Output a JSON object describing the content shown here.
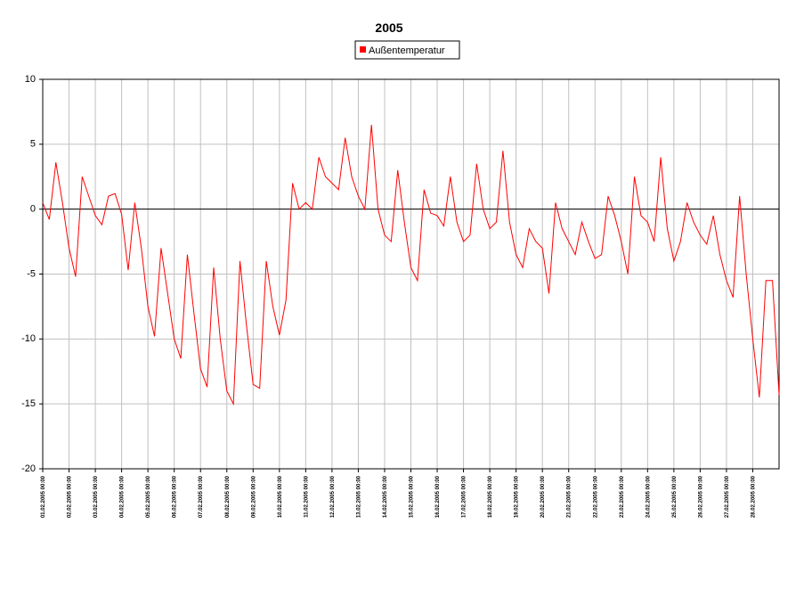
{
  "chart_data": {
    "type": "line",
    "title": "2005",
    "x": [
      "01.02.2005 00:00",
      "01.02.2005 06:00",
      "01.02.2005 12:00",
      "01.02.2005 18:00",
      "02.02.2005 00:00",
      "02.02.2005 06:00",
      "02.02.2005 12:00",
      "02.02.2005 18:00",
      "03.02.2005 00:00",
      "03.02.2005 06:00",
      "03.02.2005 12:00",
      "03.02.2005 18:00",
      "04.02.2005 00:00",
      "04.02.2005 06:00",
      "04.02.2005 12:00",
      "04.02.2005 18:00",
      "05.02.2005 00:00",
      "05.02.2005 06:00",
      "05.02.2005 12:00",
      "05.02.2005 18:00",
      "06.02.2005 00:00",
      "06.02.2005 06:00",
      "06.02.2005 12:00",
      "06.02.2005 18:00",
      "07.02.2005 00:00",
      "07.02.2005 06:00",
      "07.02.2005 12:00",
      "07.02.2005 18:00",
      "08.02.2005 00:00",
      "08.02.2005 06:00",
      "08.02.2005 12:00",
      "08.02.2005 18:00",
      "09.02.2005 00:00",
      "09.02.2005 06:00",
      "09.02.2005 12:00",
      "09.02.2005 18:00",
      "10.02.2005 00:00",
      "10.02.2005 06:00",
      "10.02.2005 12:00",
      "10.02.2005 18:00",
      "11.02.2005 00:00",
      "11.02.2005 06:00",
      "11.02.2005 12:00",
      "11.02.2005 18:00",
      "12.02.2005 00:00",
      "12.02.2005 06:00",
      "12.02.2005 12:00",
      "12.02.2005 18:00",
      "13.02.2005 00:00",
      "13.02.2005 06:00",
      "13.02.2005 12:00",
      "13.02.2005 18:00",
      "14.02.2005 00:00",
      "14.02.2005 06:00",
      "14.02.2005 12:00",
      "14.02.2005 18:00",
      "15.02.2005 00:00",
      "15.02.2005 06:00",
      "15.02.2005 12:00",
      "15.02.2005 18:00",
      "16.02.2005 00:00",
      "16.02.2005 06:00",
      "16.02.2005 12:00",
      "16.02.2005 18:00",
      "17.02.2005 00:00",
      "17.02.2005 06:00",
      "17.02.2005 12:00",
      "17.02.2005 18:00",
      "18.02.2005 00:00",
      "18.02.2005 06:00",
      "18.02.2005 12:00",
      "18.02.2005 18:00",
      "19.02.2005 00:00",
      "19.02.2005 06:00",
      "19.02.2005 12:00",
      "19.02.2005 18:00",
      "20.02.2005 00:00",
      "20.02.2005 06:00",
      "20.02.2005 12:00",
      "20.02.2005 18:00",
      "21.02.2005 00:00",
      "21.02.2005 06:00",
      "21.02.2005 12:00",
      "21.02.2005 18:00",
      "22.02.2005 00:00",
      "22.02.2005 06:00",
      "22.02.2005 12:00",
      "22.02.2005 18:00",
      "23.02.2005 00:00",
      "23.02.2005 06:00",
      "23.02.2005 12:00",
      "23.02.2005 18:00",
      "24.02.2005 00:00",
      "24.02.2005 06:00",
      "24.02.2005 12:00",
      "24.02.2005 18:00",
      "25.02.2005 00:00",
      "25.02.2005 06:00",
      "25.02.2005 12:00",
      "25.02.2005 18:00",
      "26.02.2005 00:00",
      "26.02.2005 06:00",
      "26.02.2005 12:00",
      "26.02.2005 18:00",
      "27.02.2005 00:00",
      "27.02.2005 06:00",
      "27.02.2005 12:00",
      "27.02.2005 18:00",
      "28.02.2005 00:00",
      "28.02.2005 06:00",
      "28.02.2005 12:00",
      "28.02.2005 18:00",
      "01.03.2005 00:00"
    ],
    "series": [
      {
        "name": "Außentemperatur",
        "color": "#ff0000",
        "values": [
          0.5,
          -0.8,
          3.6,
          0.5,
          -3,
          -5.2,
          2.5,
          1,
          -0.5,
          -1.2,
          1,
          1.2,
          -0.4,
          -4.7,
          0.5,
          -3,
          -7.5,
          -9.8,
          -3,
          -6.5,
          -10,
          -11.5,
          -3.5,
          -8,
          -12.3,
          -13.7,
          -4.5,
          -10,
          -14,
          -15,
          -4,
          -9,
          -13.5,
          -13.8,
          -4,
          -7.5,
          -9.7,
          -7,
          2,
          0,
          0.5,
          0,
          4,
          2.5,
          2,
          1.5,
          5.5,
          2.5,
          1,
          0,
          6.5,
          0,
          -2,
          -2.5,
          3,
          -1,
          -4.5,
          -5.5,
          1.5,
          -0.3,
          -0.5,
          -1.3,
          2.5,
          -1,
          -2.5,
          -2,
          3.5,
          0,
          -1.5,
          -1,
          4.5,
          -1,
          -3.5,
          -4.5,
          -1.5,
          -2.5,
          -3,
          -6.5,
          0.5,
          -1.5,
          -2.5,
          -3.5,
          -1,
          -2.5,
          -3.8,
          -3.5,
          1,
          -0.5,
          -2.5,
          -5,
          2.5,
          -0.5,
          -1,
          -2.5,
          4,
          -1.5,
          -4,
          -2.5,
          0.5,
          -1,
          -2,
          -2.7,
          -0.5,
          -3.5,
          -5.5,
          -6.8,
          1,
          -5,
          -10,
          -14.5,
          -5.5,
          -5.5,
          -14.3
        ]
      }
    ],
    "xlim": [
      "01.02.2005 00:00",
      "01.03.2005 00:00"
    ],
    "xticks": [
      "01.02.2005 00:00",
      "02.02.2005 00:00",
      "03.02.2005 00:00",
      "04.02.2005 00:00",
      "05.02.2005 00:00",
      "06.02.2005 00:00",
      "07.02.2005 00:00",
      "08.02.2005 00:00",
      "09.02.2005 00:00",
      "10.02.2005 00:00",
      "11.02.2005 00:00",
      "12.02.2005 00:00",
      "13.02.2005 00:00",
      "14.02.2005 00:00",
      "15.02.2005 00:00",
      "16.02.2005 00:00",
      "17.02.2005 00:00",
      "18.02.2005 00:00",
      "19.02.2005 00:00",
      "20.02.2005 00:00",
      "21.02.2005 00:00",
      "22.02.2005 00:00",
      "23.02.2005 00:00",
      "24.02.2005 00:00",
      "25.02.2005 00:00",
      "26.02.2005 00:00",
      "27.02.2005 00:00",
      "28.02.2005 00:00"
    ],
    "ylim": [
      -20,
      10
    ],
    "yticks": [
      10,
      5,
      0,
      -5,
      -10,
      -15,
      -20
    ],
    "grid": true
  }
}
